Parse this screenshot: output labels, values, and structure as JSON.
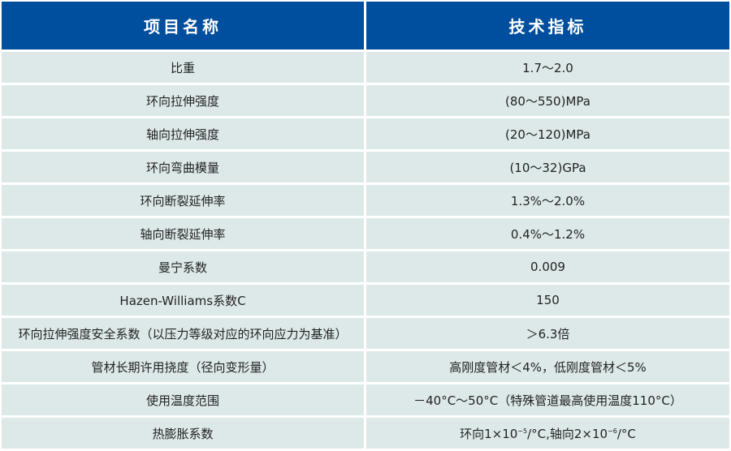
{
  "header": {
    "col1": "项目名称",
    "col2": "技术指标"
  },
  "colors": {
    "header_bg": "#004e9e",
    "row_bg": "#dde9e8"
  },
  "rows": [
    {
      "name": "比重",
      "value": "1.7～2.0"
    },
    {
      "name": "环向拉伸强度",
      "value": "(80～550)MPa"
    },
    {
      "name": "轴向拉伸强度",
      "value": "(20～120)MPa"
    },
    {
      "name": "环向弯曲模量",
      "value": "(10～32)GPa"
    },
    {
      "name": "环向断裂延伸率",
      "value": "1.3%～2.0%"
    },
    {
      "name": "轴向断裂延伸率",
      "value": "0.4%～1.2%"
    },
    {
      "name": "曼宁系数",
      "value": "0.009"
    },
    {
      "name": "Hazen-Williams系数C",
      "value": "150"
    },
    {
      "name": "环向拉伸强度安全系数（以压力等级对应的环向应力为基准）",
      "value": "＞6.3倍"
    },
    {
      "name": "管材长期许用挠度（径向变形量）",
      "value": "高刚度管材＜4%，低刚度管材＜5%"
    },
    {
      "name": "使用温度范围",
      "value": "－40°C～50°C（特殊管道最高使用温度110°C）"
    },
    {
      "name": "热膨胀系数",
      "value_parts": {
        "a": "环向1×10",
        "a_exp": "−5",
        "b": "/°C,轴向2×10",
        "b_exp": "−6",
        "c": "/°C"
      }
    }
  ]
}
